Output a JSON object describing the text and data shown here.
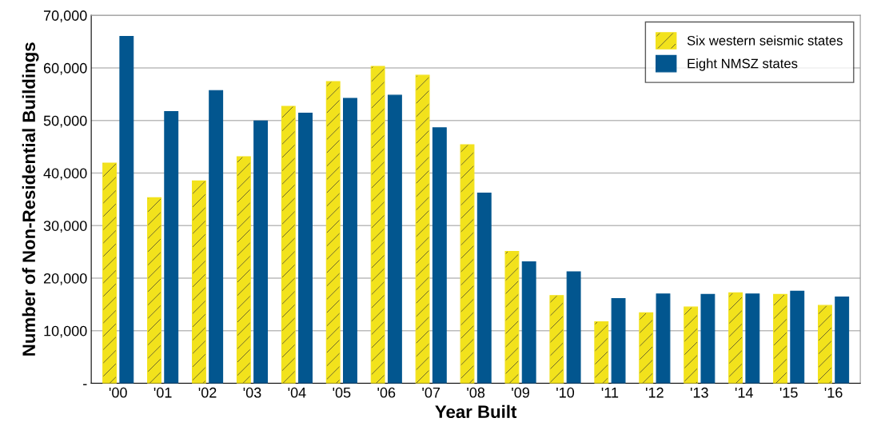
{
  "chart_data": {
    "type": "bar",
    "xlabel": "Year Built",
    "ylabel": "Number of Non-Residential Buildings",
    "categories": [
      "'00",
      "'01",
      "'02",
      "'03",
      "'04",
      "'05",
      "'06",
      "'07",
      "'08",
      "'09",
      "'10",
      "'11",
      "'12",
      "'13",
      "'14",
      "'15",
      "'16"
    ],
    "series": [
      {
        "name": "Six western seismic states",
        "color": "#f2e21c",
        "values": [
          41900,
          35300,
          38500,
          43100,
          52700,
          57400,
          60300,
          58600,
          45400,
          25100,
          16700,
          11700,
          13400,
          14500,
          17200,
          16900,
          14800
        ]
      },
      {
        "name": "Eight NMSZ states",
        "color": "#02568f",
        "values": [
          66000,
          51700,
          55700,
          49900,
          51400,
          54200,
          54800,
          48600,
          36200,
          23100,
          21200,
          16100,
          17000,
          16900,
          17000,
          17500,
          16400
        ]
      }
    ],
    "ylim": [
      0,
      70000
    ],
    "yticks": [
      {
        "value": 0,
        "label": "-"
      },
      {
        "value": 10000,
        "label": "10,000"
      },
      {
        "value": 20000,
        "label": "20,000"
      },
      {
        "value": 30000,
        "label": "30,000"
      },
      {
        "value": 40000,
        "label": "40,000"
      },
      {
        "value": 50000,
        "label": "50,000"
      },
      {
        "value": 60000,
        "label": "60,000"
      },
      {
        "value": 70000,
        "label": "70,000"
      }
    ],
    "grid": "y",
    "legend": "top right"
  }
}
